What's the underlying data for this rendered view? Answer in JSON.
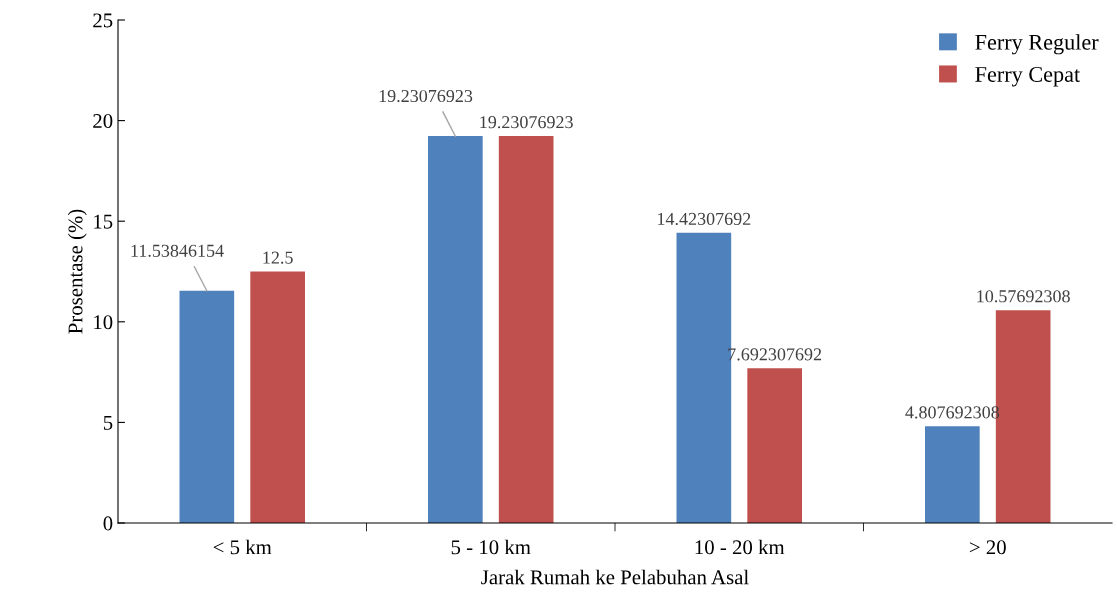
{
  "chart_data": {
    "type": "bar",
    "xlabel": "Jarak Rumah ke Pelabuhan Asal",
    "ylabel": "Prosentase (%)",
    "categories": [
      "< 5 km",
      "5 - 10 km",
      "10 - 20 km",
      "> 20"
    ],
    "series": [
      {
        "name": "Ferry Reguler",
        "color": "#4f81bd",
        "values": [
          11.53846154,
          19.23076923,
          14.42307692,
          4.807692308
        ]
      },
      {
        "name": "Ferry Cepat",
        "color": "#c0504d",
        "values": [
          12.5,
          19.23076923,
          7.692307692,
          10.57692308
        ]
      }
    ],
    "ylim": [
      0,
      25
    ],
    "yticks": [
      0,
      5,
      10,
      15,
      20,
      25
    ],
    "grid": false,
    "legend": "top right",
    "data_labels": true
  }
}
